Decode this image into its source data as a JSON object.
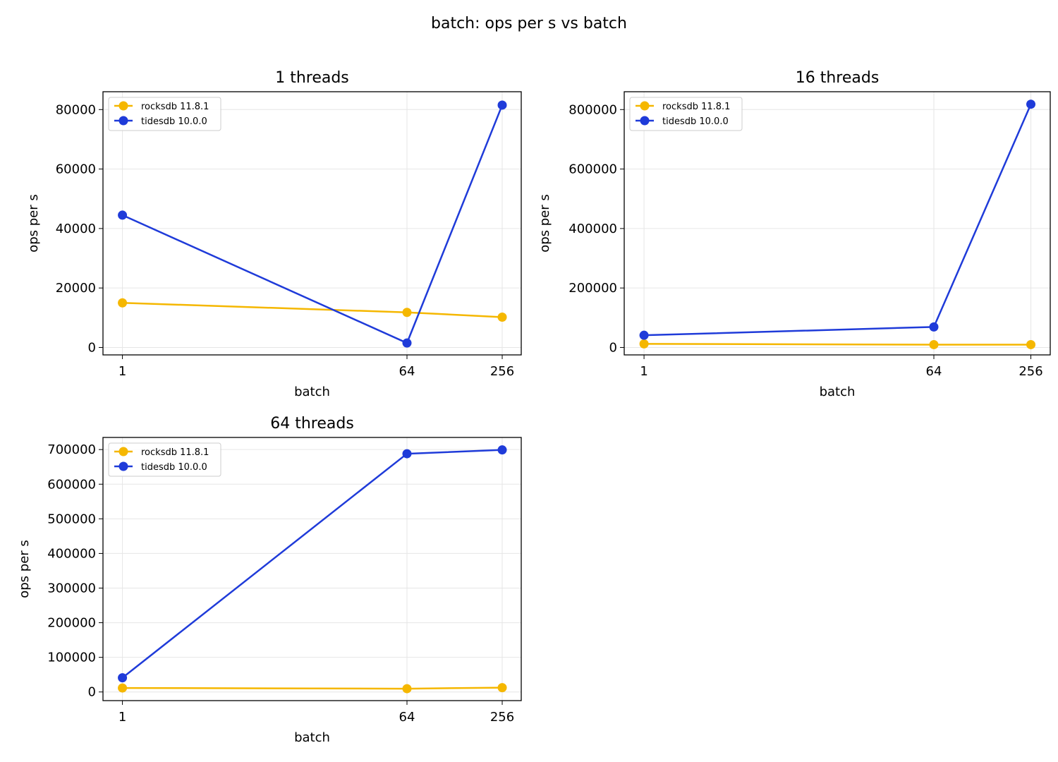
{
  "figure": {
    "title": "batch: ops per s vs batch"
  },
  "colors": {
    "rocksdb": "#f5b700",
    "tidesdb": "#1f3bd9",
    "grid": "#e6e6e6",
    "axis": "#000000"
  },
  "chart_data": [
    {
      "type": "line",
      "title": "1 threads",
      "xlabel": "batch",
      "ylabel": "ops per s",
      "x": [
        1,
        64,
        256
      ],
      "x_tick_labels": [
        "1",
        "64",
        "256"
      ],
      "ylim": [
        -2500,
        86000
      ],
      "y_ticks": [
        0,
        20000,
        40000,
        60000,
        80000
      ],
      "grid": true,
      "legend_position": "upper-left",
      "series": [
        {
          "name": "rocksdb 11.8.1",
          "values": [
            15000,
            11800,
            10200
          ]
        },
        {
          "name": "tidesdb 10.0.0",
          "values": [
            44500,
            1500,
            81500
          ]
        }
      ]
    },
    {
      "type": "line",
      "title": "16 threads",
      "xlabel": "batch",
      "ylabel": "ops per s",
      "x": [
        1,
        64,
        256
      ],
      "x_tick_labels": [
        "1",
        "64",
        "256"
      ],
      "ylim": [
        -25000,
        860000
      ],
      "y_ticks": [
        0,
        200000,
        400000,
        600000,
        800000
      ],
      "grid": true,
      "legend_position": "upper-left",
      "series": [
        {
          "name": "rocksdb 11.8.1",
          "values": [
            12000,
            9500,
            9500
          ]
        },
        {
          "name": "tidesdb 10.0.0",
          "values": [
            41000,
            69000,
            818000
          ]
        }
      ]
    },
    {
      "type": "line",
      "title": "64 threads",
      "xlabel": "batch",
      "ylabel": "ops per s",
      "x": [
        1,
        64,
        256
      ],
      "x_tick_labels": [
        "1",
        "64",
        "256"
      ],
      "ylim": [
        -25000,
        735000
      ],
      "y_ticks": [
        0,
        100000,
        200000,
        300000,
        400000,
        500000,
        600000,
        700000
      ],
      "grid": true,
      "legend_position": "upper-left",
      "series": [
        {
          "name": "rocksdb 11.8.1",
          "values": [
            11500,
            9500,
            12500
          ]
        },
        {
          "name": "tidesdb 10.0.0",
          "values": [
            41000,
            688000,
            699000
          ]
        }
      ]
    }
  ]
}
